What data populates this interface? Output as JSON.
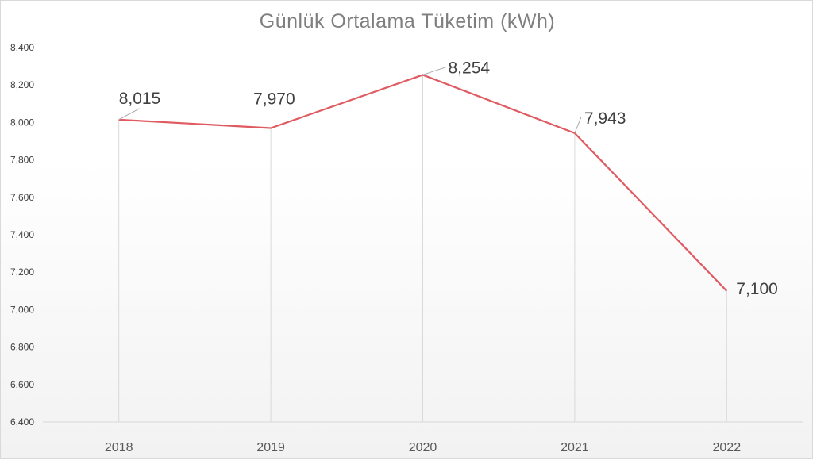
{
  "chart_data": {
    "type": "line",
    "title": "Günlük Ortalama Tüketim (kWh)",
    "xlabel": "",
    "ylabel": "",
    "categories": [
      "2018",
      "2019",
      "2020",
      "2021",
      "2022"
    ],
    "series": [
      {
        "values": [
          8015,
          7970,
          8254,
          7943,
          7100
        ]
      }
    ],
    "data_labels": [
      "8,015",
      "7,970",
      "8,254",
      "7,943",
      "7,100"
    ],
    "y_ticks": [
      "6,400",
      "6,600",
      "6,800",
      "7,000",
      "7,200",
      "7,400",
      "7,600",
      "7,800",
      "8,000",
      "8,200",
      "8,400"
    ],
    "ylim": [
      6400,
      8400
    ],
    "grid": "vertical drop lines",
    "legend": "none",
    "colors": {
      "line": "#e05a62",
      "axis": "#d9d9d9",
      "dropline": "#d9d9d9",
      "leader": "#a6a6a6"
    }
  }
}
